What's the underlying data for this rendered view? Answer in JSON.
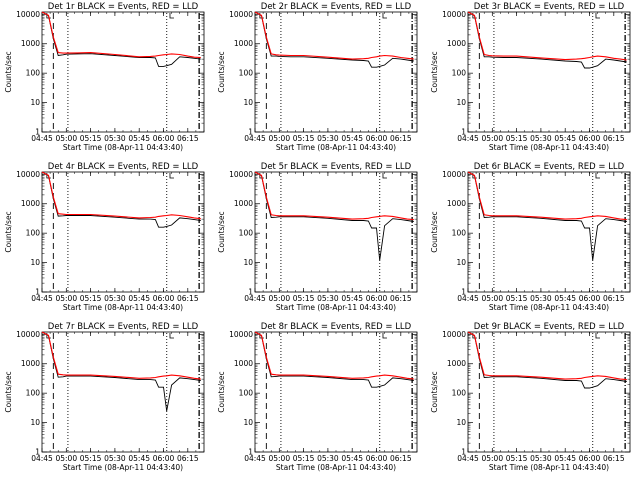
{
  "figure": {
    "colors": {
      "events": "#000000",
      "lld": "#ff0000",
      "axes": "#000000",
      "background": "#ffffff"
    }
  },
  "chart_data": [
    {
      "type": "line",
      "title": "Det 1r BLACK = Events, RED = LLD",
      "xlabel": "Start Time (08-Apr-11 04:43:40)",
      "ylabel": "Counts/sec",
      "xlim": [
        "04:45",
        "06:25"
      ],
      "ylim": [
        1,
        12000
      ],
      "yscale": "log",
      "xticks": [
        "04:45",
        "05:00",
        "05:15",
        "05:30",
        "05:45",
        "06:00",
        "06:15"
      ],
      "yticks": [
        "1",
        "10",
        "100",
        "1000",
        "10000"
      ],
      "x": [
        "04:45",
        "04:49",
        "04:52",
        "04:55",
        "04:58",
        "05:00",
        "05:07",
        "05:15",
        "05:30",
        "05:45",
        "05:52",
        "05:55",
        "05:57",
        "06:00",
        "06:02",
        "06:05",
        "06:10",
        "06:15",
        "06:19",
        "06:23"
      ],
      "series": [
        {
          "values": [
            12000,
            9000,
            1500,
            400,
            420,
            440,
            450,
            460,
            400,
            340,
            340,
            330,
            170,
            170,
            180,
            200,
            360,
            340,
            320,
            300
          ]
        },
        {
          "values": [
            12000,
            9200,
            1700,
            500,
            480,
            480,
            490,
            500,
            430,
            360,
            370,
            380,
            400,
            420,
            430,
            450,
            430,
            380,
            350,
            340
          ]
        }
      ],
      "vlines": [
        {
          "x": "04:52",
          "style": "dashed"
        },
        {
          "x": "05:01",
          "style": "dotted"
        },
        {
          "x": "06:02",
          "style": "dotted"
        },
        {
          "x": "06:22",
          "style": "dashdot"
        }
      ],
      "markers": [
        "04:48",
        "06:04"
      ]
    },
    {
      "type": "line",
      "title": "Det 2r BLACK = Events, RED = LLD",
      "xlabel": "Start Time (08-Apr-11 04:43:40)",
      "ylabel": "Counts/sec",
      "xlim": [
        "04:45",
        "06:25"
      ],
      "ylim": [
        1,
        12000
      ],
      "yscale": "log",
      "xticks": [
        "04:45",
        "05:00",
        "05:15",
        "05:30",
        "05:45",
        "06:00",
        "06:15"
      ],
      "yticks": [
        "1",
        "10",
        "100",
        "1000",
        "10000"
      ],
      "x": [
        "04:45",
        "04:49",
        "04:52",
        "04:55",
        "04:58",
        "05:00",
        "05:07",
        "05:15",
        "05:30",
        "05:45",
        "05:52",
        "05:55",
        "05:57",
        "06:00",
        "06:02",
        "06:05",
        "06:10",
        "06:15",
        "06:19",
        "06:23"
      ],
      "series": [
        {
          "values": [
            12000,
            9000,
            1500,
            380,
            380,
            370,
            360,
            360,
            320,
            280,
            270,
            260,
            160,
            160,
            170,
            190,
            320,
            300,
            280,
            260
          ]
        },
        {
          "values": [
            12000,
            9200,
            1700,
            450,
            420,
            410,
            400,
            400,
            350,
            300,
            310,
            320,
            340,
            360,
            380,
            400,
            380,
            340,
            320,
            300
          ]
        }
      ],
      "vlines": [
        {
          "x": "04:52",
          "style": "dashed"
        },
        {
          "x": "05:01",
          "style": "dotted"
        },
        {
          "x": "06:02",
          "style": "dotted"
        },
        {
          "x": "06:22",
          "style": "dashdot"
        }
      ],
      "markers": [
        "04:48",
        "06:04"
      ]
    },
    {
      "type": "line",
      "title": "Det 3r BLACK = Events, RED = LLD",
      "xlabel": "Start Time (08-Apr-11 04:43:40)",
      "ylabel": "Counts/sec",
      "xlim": [
        "04:45",
        "06:25"
      ],
      "ylim": [
        1,
        12000
      ],
      "yscale": "log",
      "xticks": [
        "04:45",
        "05:00",
        "05:15",
        "05:30",
        "05:45",
        "06:00",
        "06:15"
      ],
      "yticks": [
        "1",
        "10",
        "100",
        "1000",
        "10000"
      ],
      "x": [
        "04:45",
        "04:49",
        "04:52",
        "04:55",
        "04:58",
        "05:00",
        "05:07",
        "05:15",
        "05:30",
        "05:45",
        "05:52",
        "05:55",
        "05:57",
        "06:00",
        "06:02",
        "06:05",
        "06:10",
        "06:15",
        "06:19",
        "06:23"
      ],
      "series": [
        {
          "values": [
            12000,
            9000,
            1500,
            360,
            360,
            350,
            340,
            340,
            300,
            260,
            250,
            240,
            150,
            150,
            160,
            180,
            300,
            280,
            260,
            240
          ]
        },
        {
          "values": [
            12000,
            9200,
            1700,
            430,
            400,
            390,
            380,
            380,
            330,
            290,
            300,
            310,
            320,
            340,
            360,
            380,
            360,
            320,
            300,
            280
          ]
        }
      ],
      "vlines": [
        {
          "x": "04:52",
          "style": "dashed"
        },
        {
          "x": "05:01",
          "style": "dotted"
        },
        {
          "x": "06:02",
          "style": "dotted"
        },
        {
          "x": "06:22",
          "style": "dashdot"
        }
      ],
      "markers": [
        "04:48",
        "06:04"
      ]
    },
    {
      "type": "line",
      "title": "Det 4r BLACK = Events, RED = LLD",
      "xlabel": "Start Time (08-Apr-11 04:43:40)",
      "ylabel": "Counts/sec",
      "xlim": [
        "04:45",
        "06:25"
      ],
      "ylim": [
        1,
        12000
      ],
      "yscale": "log",
      "xticks": [
        "04:45",
        "05:00",
        "05:15",
        "05:30",
        "05:45",
        "06:00",
        "06:15"
      ],
      "yticks": [
        "1",
        "10",
        "100",
        "1000",
        "10000"
      ],
      "x": [
        "04:45",
        "04:49",
        "04:52",
        "04:55",
        "04:58",
        "05:00",
        "05:07",
        "05:15",
        "05:30",
        "05:45",
        "05:52",
        "05:55",
        "05:57",
        "06:00",
        "06:02",
        "06:05",
        "06:10",
        "06:15",
        "06:19",
        "06:23"
      ],
      "series": [
        {
          "values": [
            12000,
            9000,
            1500,
            380,
            390,
            400,
            400,
            400,
            350,
            300,
            300,
            290,
            160,
            160,
            170,
            190,
            330,
            310,
            290,
            270
          ]
        },
        {
          "values": [
            12000,
            9200,
            1700,
            460,
            440,
            430,
            430,
            430,
            380,
            330,
            340,
            350,
            370,
            390,
            400,
            420,
            400,
            360,
            330,
            310
          ]
        }
      ],
      "vlines": [
        {
          "x": "04:52",
          "style": "dashed"
        },
        {
          "x": "05:01",
          "style": "dotted"
        },
        {
          "x": "06:02",
          "style": "dotted"
        },
        {
          "x": "06:22",
          "style": "dashdot"
        }
      ],
      "markers": [
        "04:48",
        "06:04"
      ]
    },
    {
      "type": "line",
      "title": "Det 5r BLACK = Events, RED = LLD",
      "xlabel": "Start Time (08-Apr-11 04:43:40)",
      "ylabel": "Counts/sec",
      "xlim": [
        "04:45",
        "06:25"
      ],
      "ylim": [
        1,
        12000
      ],
      "yscale": "log",
      "xticks": [
        "04:45",
        "05:00",
        "05:15",
        "05:30",
        "05:45",
        "06:00",
        "06:15"
      ],
      "yticks": [
        "1",
        "10",
        "100",
        "1000",
        "10000"
      ],
      "x": [
        "04:45",
        "04:49",
        "04:52",
        "04:55",
        "04:58",
        "05:00",
        "05:07",
        "05:15",
        "05:30",
        "05:45",
        "05:52",
        "05:55",
        "05:57",
        "06:00",
        "06:02",
        "06:05",
        "06:10",
        "06:15",
        "06:19",
        "06:23"
      ],
      "series": [
        {
          "values": [
            12000,
            9000,
            1500,
            340,
            350,
            360,
            360,
            360,
            320,
            270,
            270,
            260,
            150,
            150,
            12,
            180,
            310,
            290,
            270,
            250
          ]
        },
        {
          "values": [
            12000,
            9200,
            1700,
            420,
            400,
            390,
            390,
            390,
            350,
            300,
            310,
            320,
            340,
            360,
            370,
            390,
            370,
            330,
            300,
            290
          ]
        }
      ],
      "vlines": [
        {
          "x": "04:52",
          "style": "dashed"
        },
        {
          "x": "05:01",
          "style": "dotted"
        },
        {
          "x": "06:02",
          "style": "dotted"
        },
        {
          "x": "06:22",
          "style": "dashdot"
        }
      ],
      "markers": [
        "04:48",
        "06:04"
      ]
    },
    {
      "type": "line",
      "title": "Det 6r BLACK = Events, RED = LLD",
      "xlabel": "Start Time (08-Apr-11 04:43:40)",
      "ylabel": "Counts/sec",
      "xlim": [
        "04:45",
        "06:25"
      ],
      "ylim": [
        1,
        12000
      ],
      "yscale": "log",
      "xticks": [
        "04:45",
        "05:00",
        "05:15",
        "05:30",
        "05:45",
        "06:00",
        "06:15"
      ],
      "yticks": [
        "1",
        "10",
        "100",
        "1000",
        "10000"
      ],
      "x": [
        "04:45",
        "04:49",
        "04:52",
        "04:55",
        "04:58",
        "05:00",
        "05:07",
        "05:15",
        "05:30",
        "05:45",
        "05:52",
        "05:55",
        "05:57",
        "06:00",
        "06:02",
        "06:05",
        "06:10",
        "06:15",
        "06:19",
        "06:23"
      ],
      "series": [
        {
          "values": [
            12000,
            9000,
            1500,
            340,
            350,
            360,
            360,
            360,
            320,
            270,
            270,
            260,
            150,
            150,
            12,
            180,
            310,
            290,
            270,
            250
          ]
        },
        {
          "values": [
            12000,
            9200,
            1700,
            420,
            400,
            390,
            390,
            390,
            350,
            300,
            310,
            320,
            340,
            360,
            370,
            390,
            370,
            330,
            300,
            290
          ]
        }
      ],
      "vlines": [
        {
          "x": "04:52",
          "style": "dashed"
        },
        {
          "x": "05:01",
          "style": "dotted"
        },
        {
          "x": "06:02",
          "style": "dotted"
        },
        {
          "x": "06:22",
          "style": "dashdot"
        }
      ],
      "markers": [
        "04:48",
        "06:04"
      ]
    },
    {
      "type": "line",
      "title": "Det 7r BLACK = Events, RED = LLD",
      "xlabel": "Start Time (08-Apr-11 04:43:40)",
      "ylabel": "Counts/sec",
      "xlim": [
        "04:45",
        "06:25"
      ],
      "ylim": [
        1,
        12000
      ],
      "yscale": "log",
      "xticks": [
        "04:45",
        "05:00",
        "05:15",
        "05:30",
        "05:45",
        "06:00",
        "06:15"
      ],
      "yticks": [
        "1",
        "10",
        "100",
        "1000",
        "10000"
      ],
      "x": [
        "04:45",
        "04:49",
        "04:52",
        "04:55",
        "04:58",
        "05:00",
        "05:07",
        "05:15",
        "05:30",
        "05:45",
        "05:52",
        "05:55",
        "05:57",
        "06:00",
        "06:02",
        "06:05",
        "06:10",
        "06:15",
        "06:19",
        "06:23"
      ],
      "series": [
        {
          "values": [
            12000,
            9000,
            1500,
            350,
            360,
            380,
            380,
            380,
            340,
            290,
            290,
            280,
            160,
            160,
            25,
            190,
            330,
            310,
            290,
            270
          ]
        },
        {
          "values": [
            12000,
            9200,
            1700,
            440,
            420,
            410,
            410,
            410,
            370,
            320,
            330,
            340,
            360,
            380,
            390,
            410,
            390,
            350,
            320,
            300
          ]
        }
      ],
      "vlines": [
        {
          "x": "04:52",
          "style": "dashed"
        },
        {
          "x": "05:01",
          "style": "dotted"
        },
        {
          "x": "06:02",
          "style": "dotted"
        },
        {
          "x": "06:22",
          "style": "dashdot"
        }
      ],
      "markers": [
        "04:48",
        "06:04"
      ]
    },
    {
      "type": "line",
      "title": "Det 8r BLACK = Events, RED = LLD",
      "xlabel": "Start Time (08-Apr-11 04:43:40)",
      "ylabel": "Counts/sec",
      "xlim": [
        "04:45",
        "06:25"
      ],
      "ylim": [
        1,
        12000
      ],
      "yscale": "log",
      "xticks": [
        "04:45",
        "05:00",
        "05:15",
        "05:30",
        "05:45",
        "06:00",
        "06:15"
      ],
      "yticks": [
        "1",
        "10",
        "100",
        "1000",
        "10000"
      ],
      "x": [
        "04:45",
        "04:49",
        "04:52",
        "04:55",
        "04:58",
        "05:00",
        "05:07",
        "05:15",
        "05:30",
        "05:45",
        "05:52",
        "05:55",
        "05:57",
        "06:00",
        "06:02",
        "06:05",
        "06:10",
        "06:15",
        "06:19",
        "06:23"
      ],
      "series": [
        {
          "values": [
            12000,
            9000,
            1500,
            360,
            370,
            380,
            380,
            380,
            340,
            290,
            290,
            280,
            160,
            160,
            170,
            190,
            330,
            310,
            290,
            270
          ]
        },
        {
          "values": [
            12000,
            9200,
            1700,
            440,
            420,
            410,
            410,
            410,
            370,
            320,
            330,
            340,
            360,
            380,
            390,
            410,
            390,
            350,
            320,
            300
          ]
        }
      ],
      "vlines": [
        {
          "x": "04:52",
          "style": "dashed"
        },
        {
          "x": "05:01",
          "style": "dotted"
        },
        {
          "x": "06:02",
          "style": "dotted"
        },
        {
          "x": "06:22",
          "style": "dashdot"
        }
      ],
      "markers": [
        "04:48",
        "06:04"
      ]
    },
    {
      "type": "line",
      "title": "Det 9r BLACK = Events, RED = LLD",
      "xlabel": "Start Time (08-Apr-11 04:43:40)",
      "ylabel": "Counts/sec",
      "xlim": [
        "04:45",
        "06:25"
      ],
      "ylim": [
        1,
        12000
      ],
      "yscale": "log",
      "xticks": [
        "04:45",
        "05:00",
        "05:15",
        "05:30",
        "05:45",
        "06:00",
        "06:15"
      ],
      "yticks": [
        "1",
        "10",
        "100",
        "1000",
        "10000"
      ],
      "x": [
        "04:45",
        "04:49",
        "04:52",
        "04:55",
        "04:58",
        "05:00",
        "05:07",
        "05:15",
        "05:30",
        "05:45",
        "05:52",
        "05:55",
        "05:57",
        "06:00",
        "06:02",
        "06:05",
        "06:10",
        "06:15",
        "06:19",
        "06:23"
      ],
      "series": [
        {
          "values": [
            12000,
            9000,
            1500,
            340,
            350,
            360,
            360,
            360,
            320,
            270,
            270,
            260,
            150,
            150,
            160,
            180,
            310,
            290,
            270,
            250
          ]
        },
        {
          "values": [
            12000,
            9200,
            1700,
            420,
            400,
            390,
            390,
            390,
            350,
            300,
            310,
            320,
            340,
            360,
            370,
            390,
            370,
            330,
            300,
            290
          ]
        }
      ],
      "vlines": [
        {
          "x": "04:52",
          "style": "dashed"
        },
        {
          "x": "05:01",
          "style": "dotted"
        },
        {
          "x": "06:02",
          "style": "dotted"
        },
        {
          "x": "06:22",
          "style": "dashdot"
        }
      ],
      "markers": [
        "04:48",
        "06:04"
      ]
    }
  ]
}
